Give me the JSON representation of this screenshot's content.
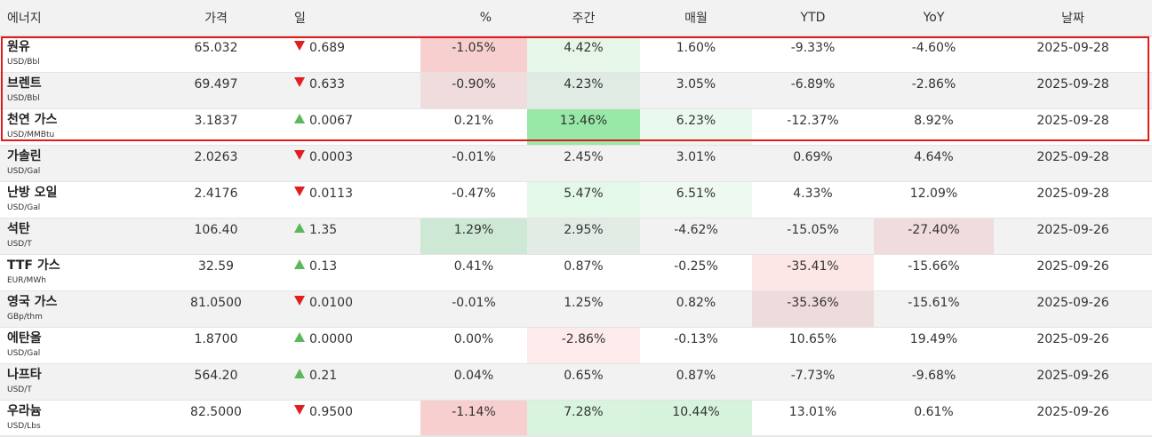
{
  "headers": {
    "name": "에너지",
    "price": "가격",
    "change": "일",
    "pct": "%",
    "weekly": "주간",
    "monthly": "매월",
    "ytd": "YTD",
    "yoy": "YoY",
    "date": "날짜"
  },
  "colors": {
    "pos_strong": "#98e8a8",
    "pos_mid": "#c8ecd0",
    "pos_light": "#e0f6e4",
    "pos_faint": "#eefaf0",
    "neg_mid": "#f8caca",
    "neg_light": "#f0d8d8",
    "neg_faint": "#fde4e4",
    "highlight_border": "#e31a1a"
  },
  "rows": [
    {
      "name": "원유",
      "unit": "USD/Bbl",
      "price": "65.032",
      "dir": "down",
      "change": "0.689",
      "pct": "-1.05%",
      "weekly": "4.42%",
      "monthly": "1.60%",
      "ytd": "-9.33%",
      "yoy": "-4.60%",
      "date": "2025-09-28",
      "bg": {
        "pct": "#f8cfcf",
        "weekly": "#e6f7ea"
      }
    },
    {
      "name": "브렌트",
      "unit": "USD/Bbl",
      "price": "69.497",
      "dir": "down",
      "change": "0.633",
      "pct": "-0.90%",
      "weekly": "4.23%",
      "monthly": "3.05%",
      "ytd": "-6.89%",
      "yoy": "-2.86%",
      "date": "2025-09-28",
      "bg": {
        "pct": "#f0dcdc",
        "weekly": "#e0ebe3"
      }
    },
    {
      "name": "천연 가스",
      "unit": "USD/MMBtu",
      "price": "3.1837",
      "dir": "up",
      "change": "0.0067",
      "pct": "0.21%",
      "weekly": "13.46%",
      "monthly": "6.23%",
      "ytd": "-12.37%",
      "yoy": "8.92%",
      "date": "2025-09-28",
      "bg": {
        "weekly": "#98e8a8",
        "monthly": "#eaf9ee"
      }
    },
    {
      "name": "가솔린",
      "unit": "USD/Gal",
      "price": "2.0263",
      "dir": "down",
      "change": "0.0003",
      "pct": "-0.01%",
      "weekly": "2.45%",
      "monthly": "3.01%",
      "ytd": "0.69%",
      "yoy": "4.64%",
      "date": "2025-09-28",
      "bg": {}
    },
    {
      "name": "난방 오일",
      "unit": "USD/Gal",
      "price": "2.4176",
      "dir": "down",
      "change": "0.0113",
      "pct": "-0.47%",
      "weekly": "5.47%",
      "monthly": "6.51%",
      "ytd": "4.33%",
      "yoy": "12.09%",
      "date": "2025-09-28",
      "bg": {
        "weekly": "#e3f8e8",
        "monthly": "#eefaf1"
      }
    },
    {
      "name": "석탄",
      "unit": "USD/T",
      "price": "106.40",
      "dir": "up",
      "change": "1.35",
      "pct": "1.29%",
      "weekly": "2.95%",
      "monthly": "-4.62%",
      "ytd": "-15.05%",
      "yoy": "-27.40%",
      "date": "2025-09-26",
      "bg": {
        "pct": "#cde8d4",
        "weekly": "#e2ece5",
        "yoy": "#f0dcdc"
      }
    },
    {
      "name": "TTF 가스",
      "unit": "EUR/MWh",
      "price": "32.59",
      "dir": "up",
      "change": "0.13",
      "pct": "0.41%",
      "weekly": "0.87%",
      "monthly": "-0.25%",
      "ytd": "-35.41%",
      "yoy": "-15.66%",
      "date": "2025-09-26",
      "bg": {
        "ytd": "#fde6e6"
      }
    },
    {
      "name": "영국 가스",
      "unit": "GBp/thm",
      "price": "81.0500",
      "dir": "down",
      "change": "0.0100",
      "pct": "-0.01%",
      "weekly": "1.25%",
      "monthly": "0.82%",
      "ytd": "-35.36%",
      "yoy": "-15.61%",
      "date": "2025-09-26",
      "bg": {
        "ytd": "#eedcdc"
      }
    },
    {
      "name": "에탄올",
      "unit": "USD/Gal",
      "price": "1.8700",
      "dir": "up",
      "change": "0.0000",
      "pct": "0.00%",
      "weekly": "-2.86%",
      "monthly": "-0.13%",
      "ytd": "10.65%",
      "yoy": "19.49%",
      "date": "2025-09-26",
      "bg": {
        "weekly": "#fdeaea"
      }
    },
    {
      "name": "나프타",
      "unit": "USD/T",
      "price": "564.20",
      "dir": "up",
      "change": "0.21",
      "pct": "0.04%",
      "weekly": "0.65%",
      "monthly": "0.87%",
      "ytd": "-7.73%",
      "yoy": "-9.68%",
      "date": "2025-09-26",
      "bg": {}
    },
    {
      "name": "우라늄",
      "unit": "USD/Lbs",
      "price": "82.5000",
      "dir": "down",
      "change": "0.9500",
      "pct": "-1.14%",
      "weekly": "7.28%",
      "monthly": "10.44%",
      "ytd": "13.01%",
      "yoy": "0.61%",
      "date": "2025-09-26",
      "bg": {
        "pct": "#f8cfcf",
        "weekly": "#d8f4de",
        "monthly": "#d6f3dc"
      }
    }
  ]
}
